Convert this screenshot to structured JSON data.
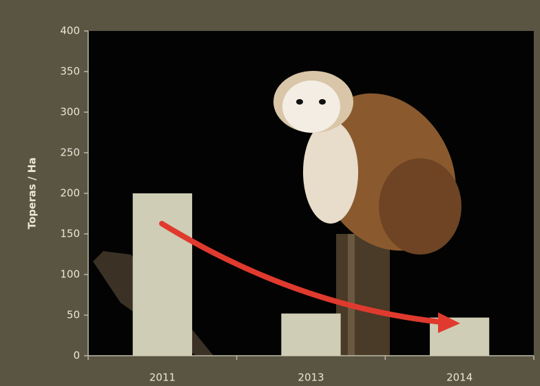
{
  "chart_data": {
    "type": "bar",
    "y_label": "Toperas / Ha",
    "categories": [
      "2011",
      "2013",
      "2014"
    ],
    "values": [
      200,
      52,
      47
    ],
    "color": "#cfcdb5",
    "ylim": [
      0,
      400
    ],
    "yticks": [
      0,
      50,
      100,
      150,
      200,
      250,
      300,
      350,
      400
    ]
  }
}
